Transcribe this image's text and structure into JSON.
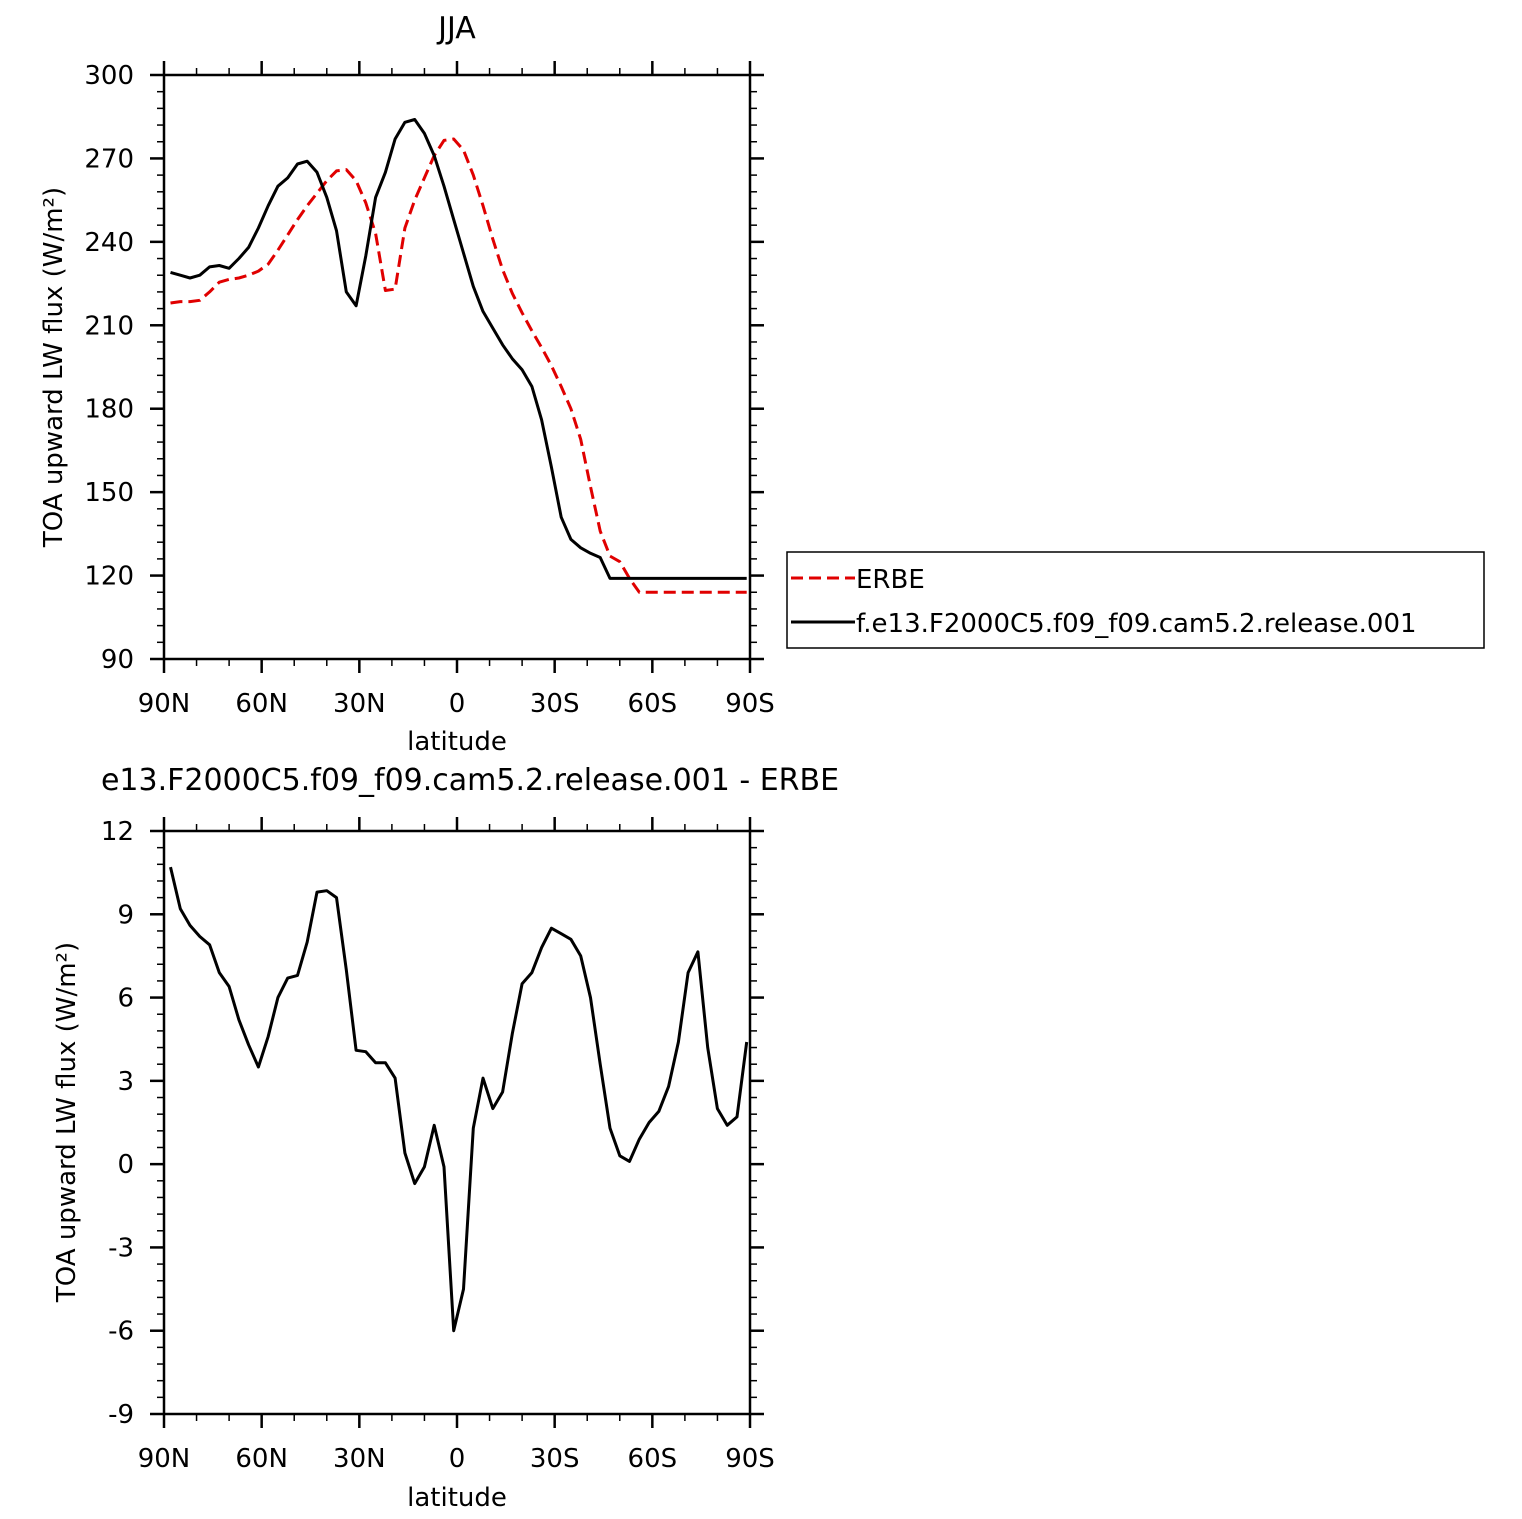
{
  "chart_data": [
    {
      "type": "line",
      "title": "JJA",
      "xlabel": "latitude",
      "ylabel": "TOA upward LW flux (W/m²)",
      "x_ticks": [
        "90N",
        "60N",
        "30N",
        "0",
        "30S",
        "60S",
        "90S"
      ],
      "x_tick_values": [
        90,
        60,
        30,
        0,
        -30,
        -60,
        -90
      ],
      "y_ticks": [
        "90",
        "120",
        "150",
        "180",
        "210",
        "240",
        "270",
        "300"
      ],
      "ylim": [
        90,
        300
      ],
      "xlim": [
        90,
        -90
      ],
      "legend_position": "right",
      "series": [
        {
          "name": "ERBE",
          "color": "#e00000",
          "dash": "dashed",
          "x": [
            88,
            85,
            82,
            79,
            76,
            73,
            70,
            67,
            64,
            61,
            58,
            55,
            52,
            49,
            46,
            43,
            40,
            37,
            34,
            31,
            28,
            25,
            22,
            19,
            16,
            13,
            10,
            7,
            4,
            1,
            -2,
            -5,
            -8,
            -11,
            -14,
            -17,
            -20,
            -23,
            -26,
            -29,
            -32,
            -35,
            -38,
            -41,
            -44,
            -47,
            -50,
            -53,
            -56,
            -59,
            -62,
            -65,
            -68,
            -71,
            -74,
            -77,
            -80,
            -83,
            -86,
            -89
          ],
          "values": [
            218,
            218.5,
            218.5,
            219,
            222,
            225.5,
            226.5,
            227,
            228,
            229.5,
            232,
            237,
            242.5,
            248,
            253,
            257.5,
            262,
            265.5,
            266,
            262,
            254,
            243,
            222.5,
            223,
            245,
            255,
            263,
            271,
            276.5,
            277,
            273,
            264,
            253,
            241,
            230,
            221.5,
            214.5,
            208,
            202,
            195.5,
            188,
            180,
            169,
            152,
            136,
            127,
            125,
            119,
            114,
            114,
            114,
            114,
            114,
            114,
            114,
            114,
            114,
            114,
            114,
            114
          ]
        },
        {
          "name": "f.e13.F2000C5.f09_f09.cam5.2.release.001",
          "color": "#000000",
          "dash": "solid",
          "x": [
            88,
            85,
            82,
            79,
            76,
            73,
            70,
            67,
            64,
            61,
            58,
            55,
            52,
            49,
            46,
            43,
            40,
            37,
            34,
            31,
            28,
            25,
            22,
            19,
            16,
            13,
            10,
            7,
            4,
            1,
            -2,
            -5,
            -8,
            -11,
            -14,
            -17,
            -20,
            -23,
            -26,
            -29,
            -32,
            -35,
            -38,
            -41,
            -44,
            -47,
            -50,
            -53,
            -56,
            -59,
            -62,
            -65,
            -68,
            -71,
            -74,
            -77,
            -80,
            -83,
            -86,
            -89
          ],
          "values": [
            229,
            228,
            227,
            228,
            231,
            231.5,
            230.5,
            234,
            238,
            245,
            253,
            260,
            263,
            268,
            269,
            265,
            256,
            244,
            222,
            217,
            235,
            256,
            265,
            277,
            283,
            284,
            279,
            271,
            260,
            248,
            236,
            224,
            215,
            209,
            203,
            198,
            194,
            188,
            176,
            159,
            141,
            133,
            130,
            128,
            126.5,
            119,
            119,
            119,
            119,
            119,
            119,
            119,
            119,
            119,
            119,
            119,
            119,
            119,
            119,
            119
          ]
        }
      ]
    },
    {
      "type": "line",
      "title": "e13.F2000C5.f09_f09.cam5.2.release.001 - ERBE",
      "xlabel": "latitude",
      "ylabel": "TOA upward LW flux (W/m²)",
      "x_ticks": [
        "90N",
        "60N",
        "30N",
        "0",
        "30S",
        "60S",
        "90S"
      ],
      "x_tick_values": [
        90,
        60,
        30,
        0,
        -30,
        -60,
        -90
      ],
      "y_ticks": [
        "-9",
        "-6",
        "-3",
        "0",
        "3",
        "6",
        "9",
        "12"
      ],
      "ylim": [
        -9,
        12
      ],
      "xlim": [
        90,
        -90
      ],
      "series": [
        {
          "color": "#000000",
          "dash": "solid",
          "x": [
            88,
            85,
            82,
            79,
            76,
            73,
            70,
            67,
            64,
            61,
            58,
            55,
            52,
            49,
            46,
            43,
            40,
            37,
            34,
            31,
            28,
            25,
            22,
            19,
            16,
            13,
            10,
            7,
            4,
            1,
            -2,
            -5,
            -8,
            -11,
            -14,
            -17,
            -20,
            -23,
            -26,
            -29,
            -32,
            -35,
            -38,
            -41,
            -44,
            -47,
            -50,
            -53,
            -56,
            -59,
            -62,
            -65,
            -68,
            -71,
            -74,
            -77,
            -80,
            -83,
            -86,
            -89
          ],
          "values": [
            10.7,
            9.2,
            8.6,
            8.2,
            7.9,
            6.9,
            6.4,
            5.2,
            4.3,
            3.5,
            4.6,
            6.0,
            6.7,
            6.8,
            8.0,
            9.8,
            9.85,
            9.6,
            7.0,
            4.1,
            4.05,
            3.65,
            3.65,
            3.1,
            0.4,
            -0.7,
            -0.1,
            1.4,
            -0.1,
            -6.0,
            -4.5,
            1.3,
            3.1,
            2.0,
            2.6,
            4.7,
            6.5,
            6.9,
            7.8,
            8.5,
            8.3,
            8.1,
            7.5,
            6.0,
            3.6,
            1.3,
            0.3,
            0.1,
            0.9,
            1.5,
            1.9,
            2.8,
            4.4,
            6.9,
            7.65,
            4.2,
            2.0,
            1.4,
            1.7,
            4.4
          ]
        }
      ]
    }
  ]
}
